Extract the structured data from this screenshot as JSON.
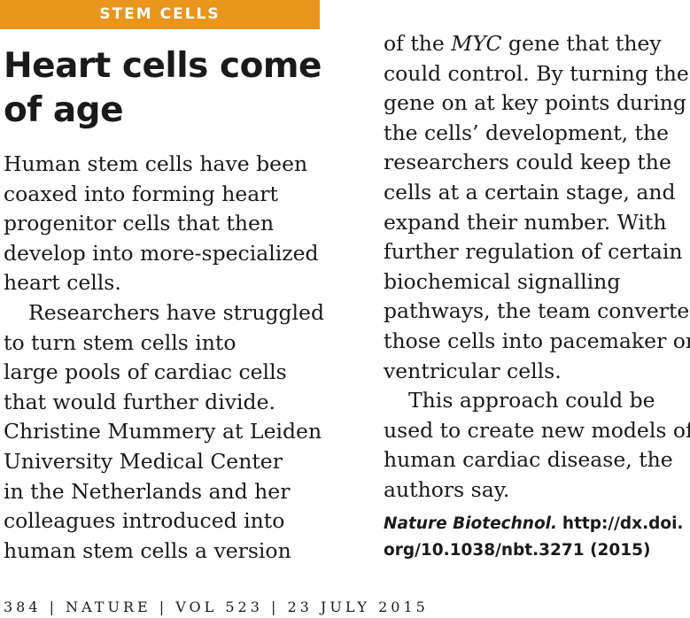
{
  "section_badge": "STEM CELLS",
  "headline": {
    "line1": "Heart cells come",
    "line2": "of age"
  },
  "left_column": {
    "para1": [
      "Human stem cells have been",
      "coaxed into forming heart",
      "progenitor cells that then",
      "develop into more-specialized",
      "heart cells."
    ],
    "para2": [
      "Researchers have struggled",
      "to turn stem cells into",
      "large pools of cardiac cells",
      "that would further divide.",
      "Christine Mummery at Leiden",
      "University Medical Center",
      "in the Netherlands and her",
      "colleagues introduced into",
      "human stem cells a version"
    ]
  },
  "right_column": {
    "first_line": {
      "before": "of the ",
      "gene_name": "MYC",
      "after": " gene that they"
    },
    "para2_rest": [
      "could control. By turning the",
      "gene on at key points during",
      "the cells’ development, the",
      "researchers could keep the",
      "cells at a certain stage, and",
      "expand their number. With",
      "further regulation of certain",
      "biochemical signalling",
      "pathways, the team converted",
      "those cells into pacemaker or",
      "ventricular cells."
    ],
    "para3": [
      "This approach could be",
      "used to create new models of",
      "human cardiac disease, the",
      "authors say."
    ]
  },
  "citation": {
    "journal": "Nature Biotechnol.",
    "url_line1": "http://dx.doi.",
    "url_line2": "org/10.1038/nbt.3271 (2015)"
  },
  "footer": {
    "page_number": "384",
    "separator": "|",
    "publication": "NATURE",
    "volume": "VOL 523",
    "date": "23 JULY 2015"
  }
}
